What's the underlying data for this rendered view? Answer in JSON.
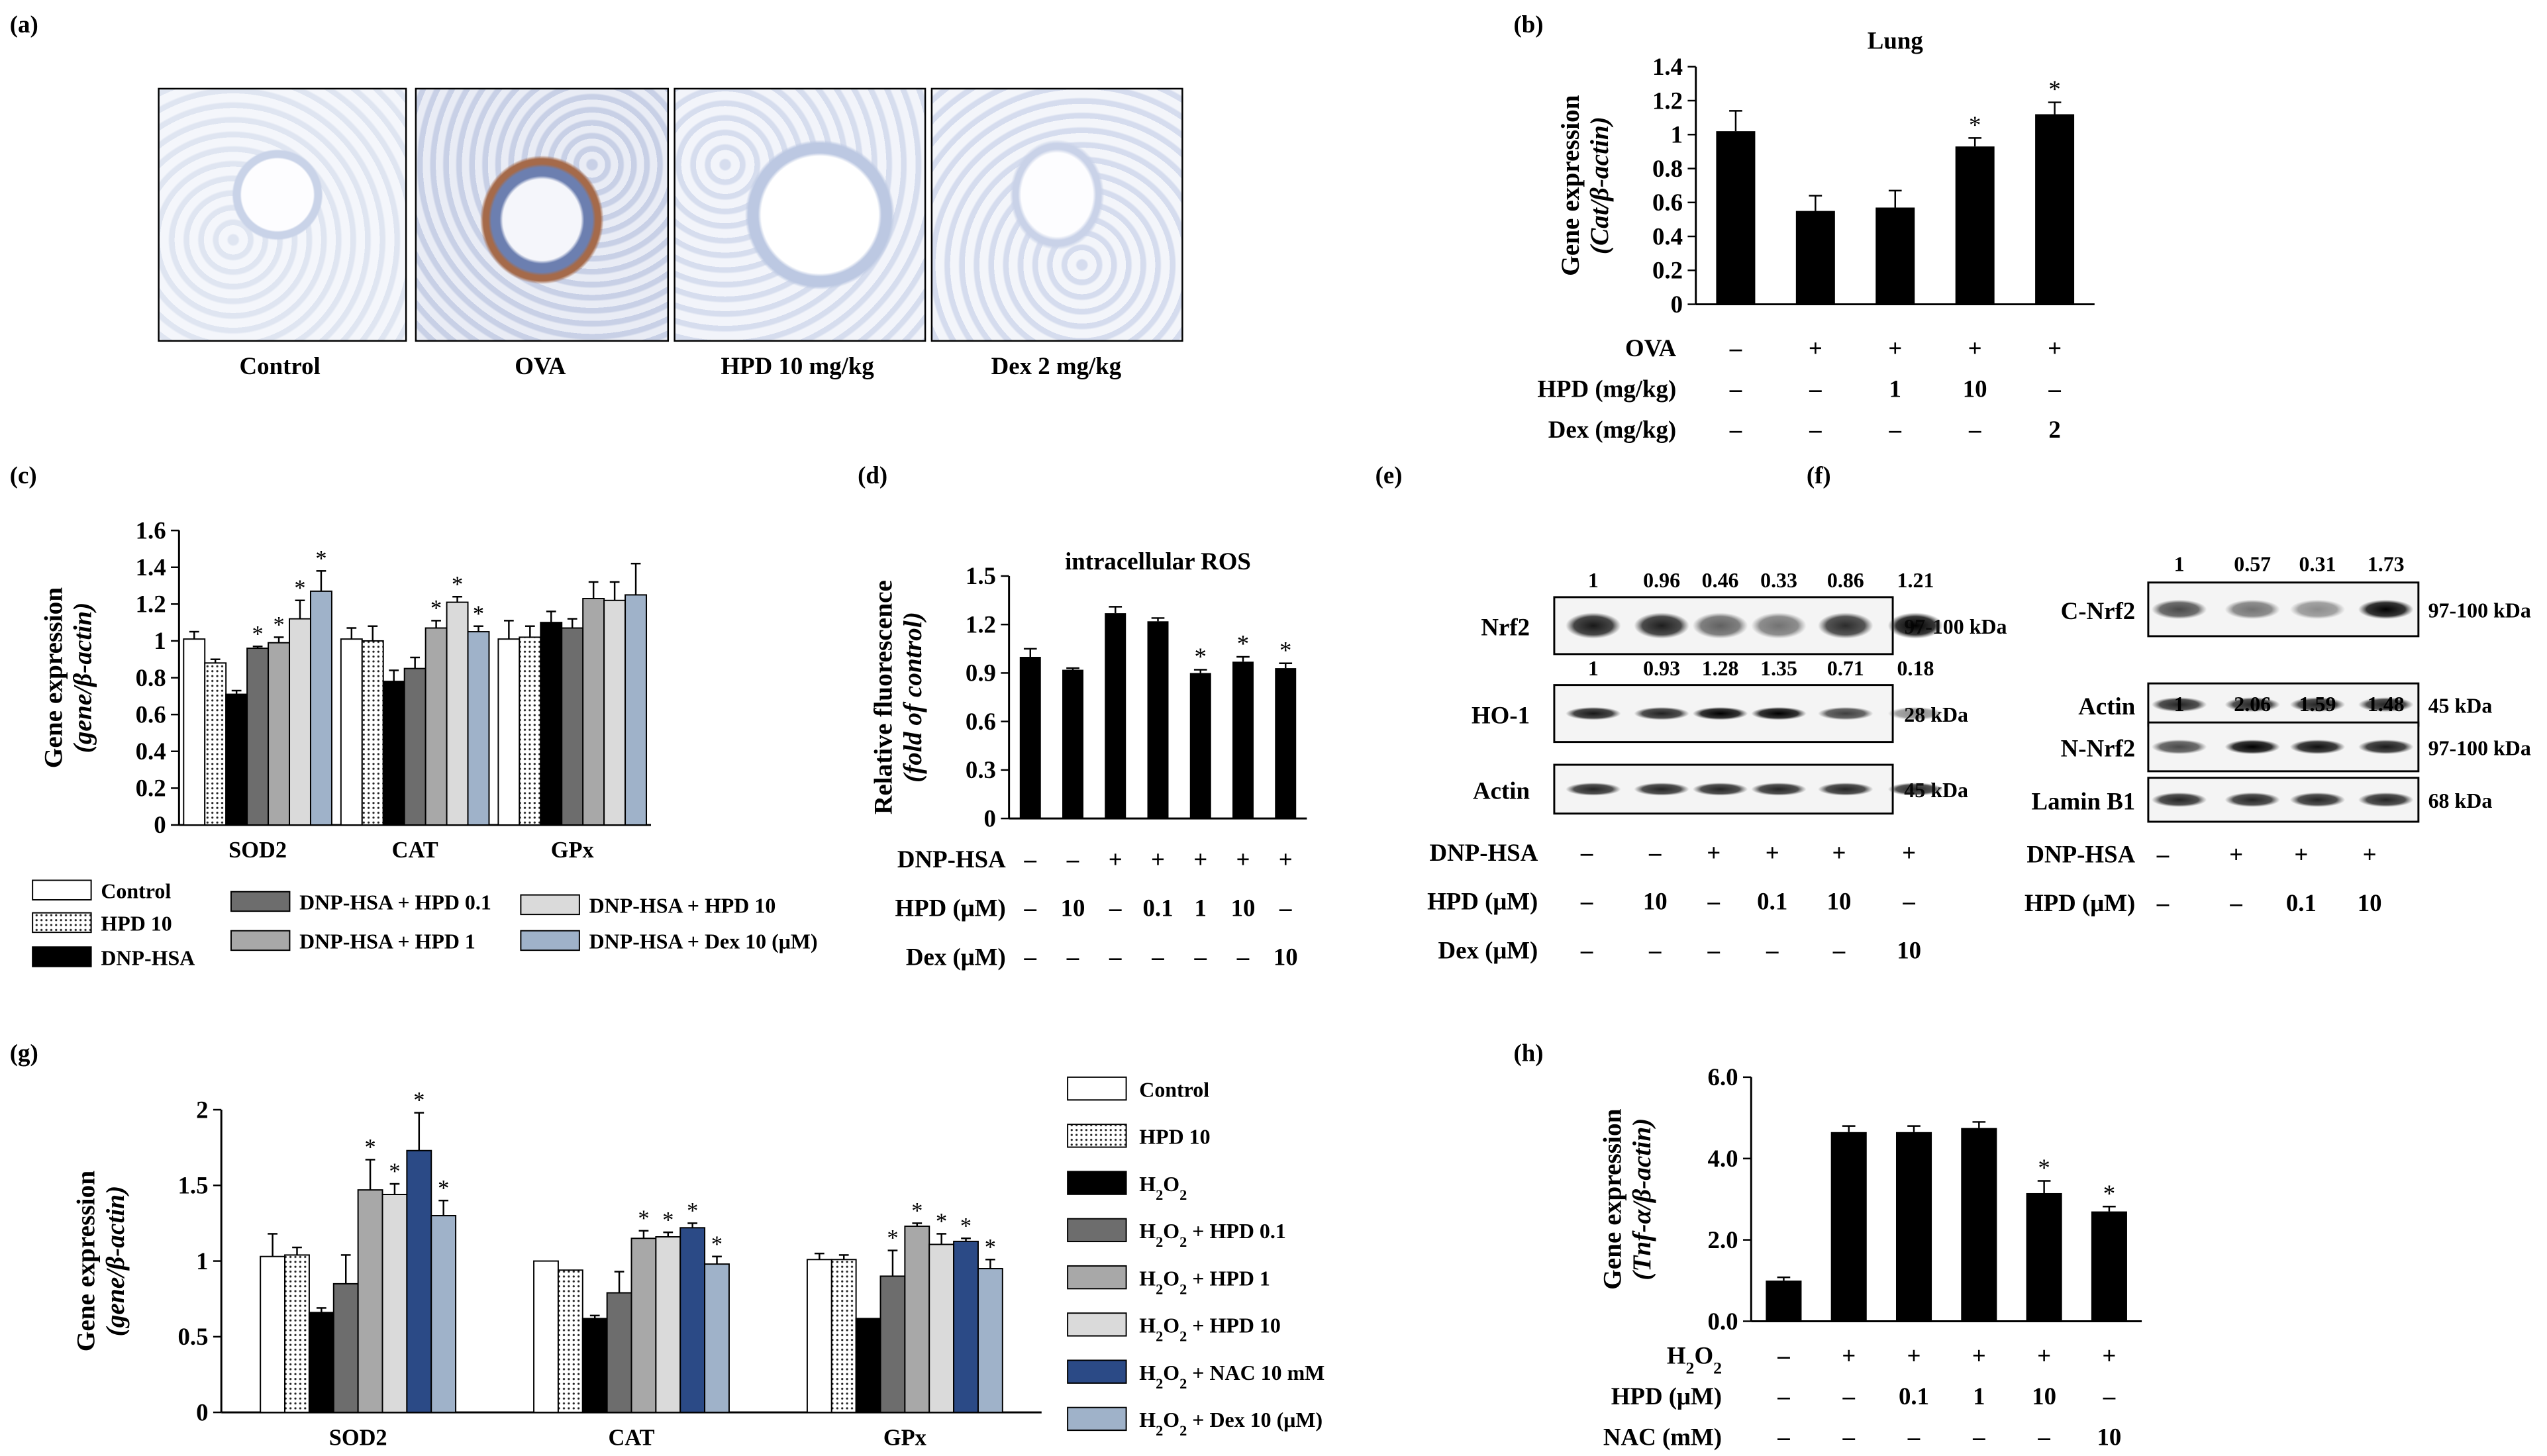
{
  "panels": {
    "a": {
      "letter": "(a)",
      "images": [
        "Control",
        "OVA",
        "HPD 10 mg/kg",
        "Dex 2 mg/kg"
      ]
    },
    "b": {
      "letter": "(b)"
    },
    "c": {
      "letter": "(c)"
    },
    "d": {
      "letter": "(d)"
    },
    "e": {
      "letter": "(e)"
    },
    "f": {
      "letter": "(f)"
    },
    "g": {
      "letter": "(g)"
    },
    "h": {
      "letter": "(h)"
    }
  },
  "chart_data": [
    {
      "id": "b",
      "type": "bar",
      "title": "Lung",
      "ylabel_line1": "Gene expression",
      "ylabel_line2": "(Cat/β-actin)",
      "ylim": [
        0,
        1.4
      ],
      "yticks": [
        "0",
        "0.2",
        "0.4",
        "0.6",
        "0.8",
        "1",
        "1.2",
        "1.4"
      ],
      "values": [
        1.02,
        0.55,
        0.57,
        0.93,
        1.12
      ],
      "errors": [
        0.12,
        0.09,
        0.1,
        0.05,
        0.07
      ],
      "sig": [
        "",
        "",
        "",
        "*",
        "*"
      ],
      "conditions": [
        {
          "label": "OVA",
          "values": [
            "–",
            "+",
            "+",
            "+",
            "+"
          ]
        },
        {
          "label": "HPD (mg/kg)",
          "values": [
            "–",
            "–",
            "1",
            "10",
            "–"
          ]
        },
        {
          "label": "Dex (mg/kg)",
          "values": [
            "–",
            "–",
            "–",
            "–",
            "2"
          ]
        }
      ]
    },
    {
      "id": "c",
      "type": "bar",
      "ylabel_line1": "Gene expression",
      "ylabel_line2": "(gene/β-actin)",
      "ylim": [
        0,
        1.6
      ],
      "yticks": [
        "0",
        "0.2",
        "0.4",
        "0.6",
        "0.8",
        "1",
        "1.2",
        "1.4",
        "1.6"
      ],
      "categories": [
        "SOD2",
        "CAT",
        "GPx"
      ],
      "series": [
        {
          "name": "Control",
          "color": "#ffffff",
          "values": [
            1.01,
            1.01,
            1.01
          ],
          "errors": [
            0.04,
            0.06,
            0.1
          ],
          "sig": [
            "",
            "",
            ""
          ]
        },
        {
          "name": "HPD 10",
          "color": "dots",
          "values": [
            0.88,
            1.0,
            1.02
          ],
          "errors": [
            0.02,
            0.08,
            0.06
          ],
          "sig": [
            "",
            "",
            ""
          ]
        },
        {
          "name": "DNP-HSA",
          "color": "#000000",
          "values": [
            0.71,
            0.78,
            1.1
          ],
          "errors": [
            0.02,
            0.06,
            0.06
          ],
          "sig": [
            "",
            "",
            ""
          ]
        },
        {
          "name": "DNP-HSA + HPD 0.1",
          "color": "#6d6d6d",
          "values": [
            0.96,
            0.85,
            1.07
          ],
          "errors": [
            0.01,
            0.06,
            0.05
          ],
          "sig": [
            "*",
            "",
            ""
          ]
        },
        {
          "name": "DNP-HSA + HPD 1",
          "color": "#a8a8a8",
          "values": [
            0.99,
            1.07,
            1.23
          ],
          "errors": [
            0.03,
            0.04,
            0.09
          ],
          "sig": [
            "*",
            "*",
            ""
          ]
        },
        {
          "name": "DNP-HSA + HPD 10",
          "color": "#dadada",
          "values": [
            1.12,
            1.21,
            1.22
          ],
          "errors": [
            0.1,
            0.03,
            0.1
          ],
          "sig": [
            "*",
            "*",
            ""
          ]
        },
        {
          "name": "DNP-HSA + Dex 10 (μM)",
          "color": "#9fb2c9",
          "values": [
            1.27,
            1.05,
            1.25
          ],
          "errors": [
            0.11,
            0.03,
            0.17
          ],
          "sig": [
            "*",
            "*",
            ""
          ]
        }
      ],
      "legend": [
        "Control",
        "HPD 10",
        "DNP-HSA",
        "DNP-HSA + HPD 0.1",
        "DNP-HSA + HPD 1",
        "DNP-HSA + HPD 10",
        "DNP-HSA + Dex 10 (μM)"
      ]
    },
    {
      "id": "d",
      "type": "bar",
      "title": "intracellular ROS",
      "ylabel_line1": "Relative fluorescence",
      "ylabel_line2": "(fold of control)",
      "ylim": [
        0,
        1.5
      ],
      "yticks": [
        "0",
        "0.3",
        "0.6",
        "0.9",
        "1.2",
        "1.5"
      ],
      "values": [
        1.0,
        0.92,
        1.27,
        1.22,
        0.9,
        0.97,
        0.93
      ],
      "errors": [
        0.05,
        0.01,
        0.04,
        0.02,
        0.02,
        0.03,
        0.03
      ],
      "sig": [
        "",
        "",
        "",
        "",
        "*",
        "*",
        "*"
      ],
      "conditions": [
        {
          "label": "DNP-HSA",
          "values": [
            "–",
            "–",
            "+",
            "+",
            "+",
            "+",
            "+"
          ]
        },
        {
          "label": "HPD (μM)",
          "values": [
            "–",
            "10",
            "–",
            "0.1",
            "1",
            "10",
            "–"
          ]
        },
        {
          "label": "Dex (μM)",
          "values": [
            "–",
            "–",
            "–",
            "–",
            "–",
            "–",
            "10"
          ]
        }
      ]
    },
    {
      "id": "g",
      "type": "bar",
      "ylabel_line1": "Gene expression",
      "ylabel_line2": "(gene/β-actin)",
      "ylim": [
        0,
        2
      ],
      "yticks": [
        "0",
        "0.5",
        "1",
        "1.5",
        "2"
      ],
      "categories": [
        "SOD2",
        "CAT",
        "GPx"
      ],
      "series": [
        {
          "name": "Control",
          "color": "#ffffff",
          "values": [
            1.03,
            1.0,
            1.01
          ],
          "errors": [
            0.15,
            0.0,
            0.04
          ],
          "sig": [
            "",
            "",
            ""
          ]
        },
        {
          "name": "HPD 10",
          "color": "dots",
          "values": [
            1.04,
            0.94,
            1.01
          ],
          "errors": [
            0.05,
            0.0,
            0.03
          ],
          "sig": [
            "",
            "",
            ""
          ]
        },
        {
          "name": "H2O2",
          "color": "#000000",
          "values": [
            0.66,
            0.62,
            0.62
          ],
          "errors": [
            0.03,
            0.02,
            0.0
          ],
          "sig": [
            "",
            "",
            ""
          ]
        },
        {
          "name": "H2O2 + HPD 0.1",
          "color": "#6d6d6d",
          "values": [
            0.85,
            0.79,
            0.9
          ],
          "errors": [
            0.19,
            0.14,
            0.17
          ],
          "sig": [
            "",
            "",
            "*"
          ]
        },
        {
          "name": "H2O2 + HPD 1",
          "color": "#a8a8a8",
          "values": [
            1.47,
            1.15,
            1.23
          ],
          "errors": [
            0.2,
            0.05,
            0.02
          ],
          "sig": [
            "*",
            "*",
            "*"
          ]
        },
        {
          "name": "H2O2 + HPD 10",
          "color": "#dadada",
          "values": [
            1.44,
            1.16,
            1.11
          ],
          "errors": [
            0.07,
            0.03,
            0.07
          ],
          "sig": [
            "*",
            "*",
            "*"
          ]
        },
        {
          "name": "H2O2 + NAC 10 mM",
          "color": "#2b4a86",
          "values": [
            1.73,
            1.22,
            1.13
          ],
          "errors": [
            0.25,
            0.03,
            0.02
          ],
          "sig": [
            "*",
            "*",
            "*"
          ]
        },
        {
          "name": "H2O2 + Dex 10 (μM)",
          "color": "#9fb2c9",
          "values": [
            1.3,
            0.98,
            0.95
          ],
          "errors": [
            0.1,
            0.05,
            0.06
          ],
          "sig": [
            "*",
            "*",
            "*"
          ]
        }
      ],
      "legend": [
        "Control",
        "HPD 10",
        "H2O2",
        "H2O2 + HPD 0.1",
        "H2O2 + HPD 1",
        "H2O2 + HPD 10",
        "H2O2 + NAC 10 mM",
        "H2O2 + Dex 10 (μM)"
      ]
    },
    {
      "id": "h",
      "type": "bar",
      "ylabel_line1": "Gene expression",
      "ylabel_line2": "(Tnf-α/β-actin)",
      "ylim": [
        0,
        6
      ],
      "yticks": [
        "0.0",
        "2.0",
        "4.0",
        "6.0"
      ],
      "values": [
        1.0,
        4.65,
        4.65,
        4.75,
        3.15,
        2.7
      ],
      "errors": [
        0.08,
        0.15,
        0.15,
        0.15,
        0.3,
        0.12
      ],
      "sig": [
        "",
        "",
        "",
        "",
        "*",
        "*"
      ],
      "conditions": [
        {
          "label": "H2O2",
          "values": [
            "–",
            "+",
            "+",
            "+",
            "+",
            "+"
          ]
        },
        {
          "label": "HPD (μM)",
          "values": [
            "–",
            "–",
            "0.1",
            "1",
            "10",
            "–"
          ]
        },
        {
          "label": "NAC (mM)",
          "values": [
            "–",
            "–",
            "–",
            "–",
            "–",
            "10"
          ]
        }
      ]
    }
  ],
  "blots": {
    "e": {
      "rows": [
        {
          "protein": "Nrf2",
          "size": "97-100 kDa",
          "quant": [
            "1",
            "0.96",
            "0.46",
            "0.33",
            "0.86",
            "1.21"
          ]
        },
        {
          "protein": "HO-1",
          "size": "28 kDa",
          "quant": [
            "1",
            "0.93",
            "1.28",
            "1.35",
            "0.71",
            "0.18"
          ]
        },
        {
          "protein": "Actin",
          "size": "45 kDa",
          "quant": []
        }
      ],
      "conditions": [
        {
          "label": "DNP-HSA",
          "values": [
            "–",
            "–",
            "+",
            "+",
            "+",
            "+"
          ]
        },
        {
          "label": "HPD (μM)",
          "values": [
            "–",
            "10",
            "–",
            "0.1",
            "10",
            "–"
          ]
        },
        {
          "label": "Dex (μM)",
          "values": [
            "–",
            "–",
            "–",
            "–",
            "–",
            "10"
          ]
        }
      ]
    },
    "f": {
      "rows": [
        {
          "protein": "C-Nrf2",
          "size": "97-100 kDa",
          "quant": [
            "1",
            "0.57",
            "0.31",
            "1.73"
          ]
        },
        {
          "protein": "Actin",
          "size": "45 kDa",
          "quant": []
        },
        {
          "protein": "N-Nrf2",
          "size": "97-100 kDa",
          "quant": [
            "1",
            "2.06",
            "1.59",
            "1.48"
          ]
        },
        {
          "protein": "Lamin B1",
          "size": "68 kDa",
          "quant": []
        }
      ],
      "conditions": [
        {
          "label": "DNP-HSA",
          "values": [
            "–",
            "+",
            "+",
            "+"
          ]
        },
        {
          "label": "HPD (μM)",
          "values": [
            "–",
            "–",
            "0.1",
            "10"
          ]
        }
      ]
    }
  }
}
